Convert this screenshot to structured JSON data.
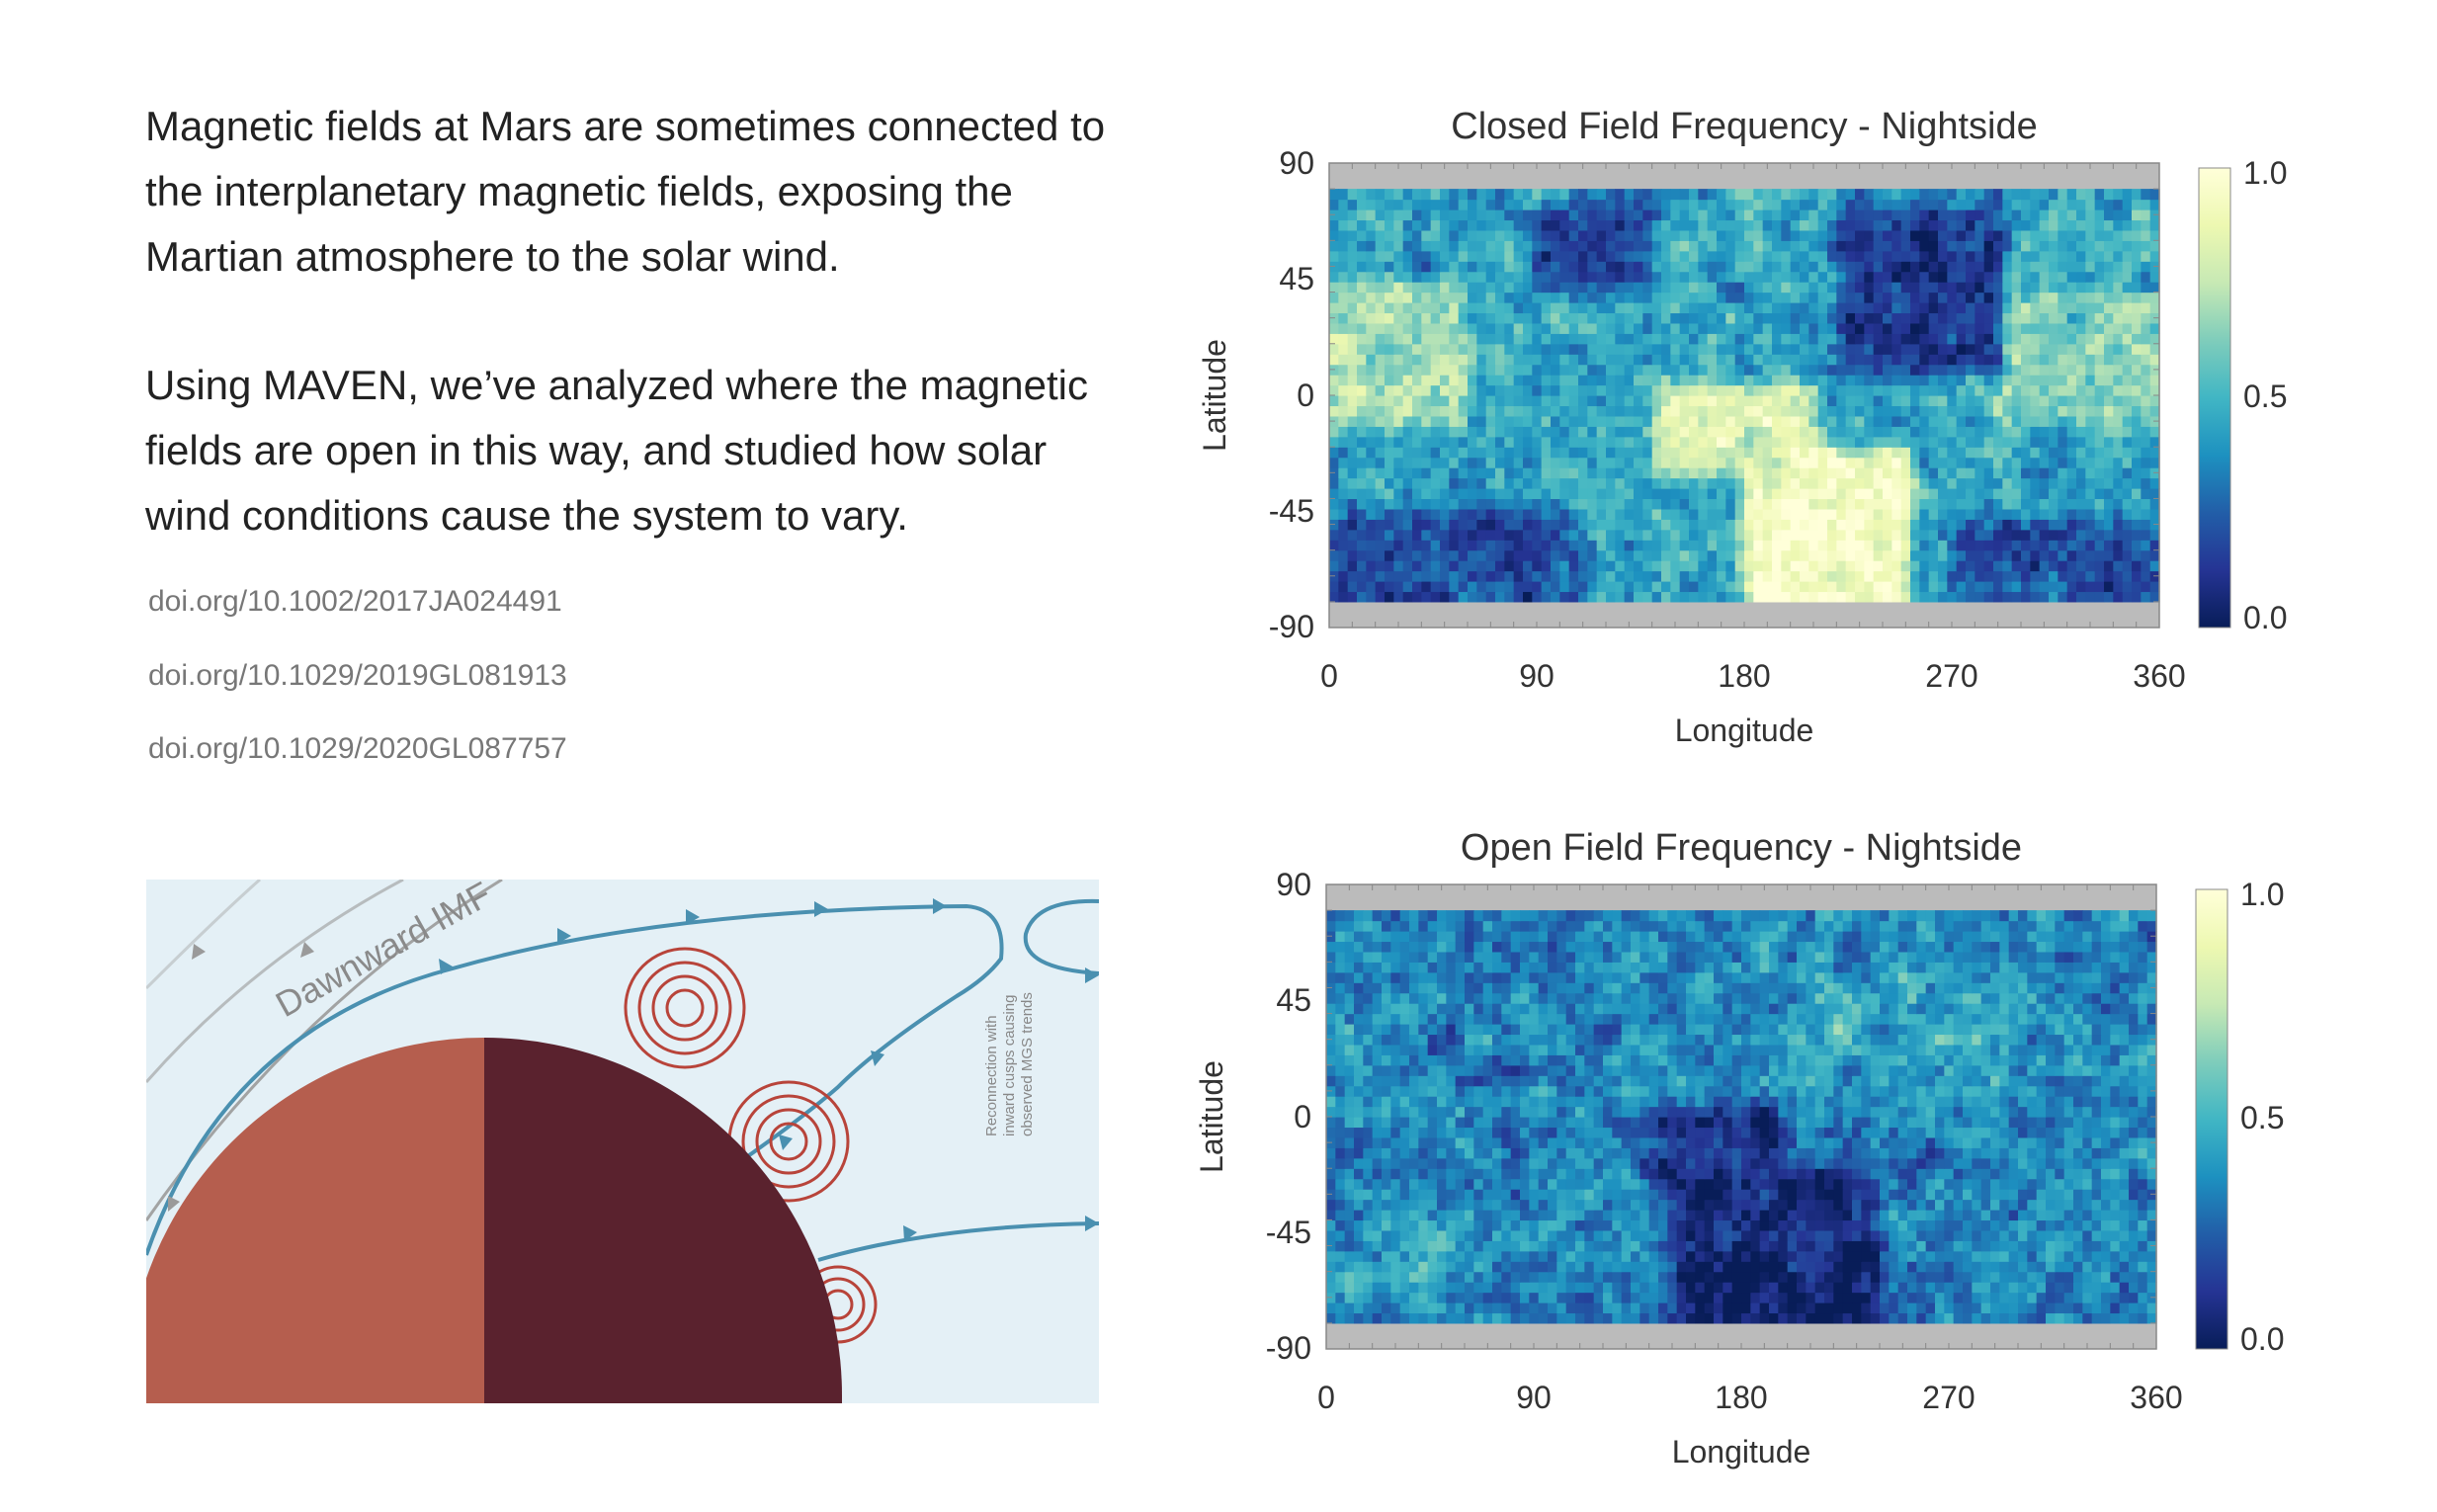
{
  "text": {
    "paragraph1": "Magnetic fields at Mars are sometimes connected to the interplanetary magnetic fields, exposing the Martian atmosphere to the solar wind.",
    "paragraph2": "Using MAVEN, we’ve analyzed where the magnetic fields are open in this way, and studied how solar wind conditions cause the system to vary.",
    "references": [
      "doi.org/10.1002/2017JA024491",
      "doi.org/10.1029/2019GL081913",
      "doi.org/10.1029/2020GL087757"
    ]
  },
  "diagram": {
    "imf_label": "Dawnward IMF",
    "annotation_lines": [
      "Reconnection with",
      "inward cusps causing",
      "observed MGS trends"
    ],
    "colors": {
      "background": "#e4f0f6",
      "field_line": "#4a90b0",
      "dayside": "#b55e4e",
      "nightside": "#5a222e",
      "cusp": "#b8443a",
      "imf_grey": "#9a9a9a"
    }
  },
  "colormap": "YlGnBu",
  "chart_data": [
    {
      "type": "heatmap",
      "title": "Closed Field Frequency - Nightside",
      "xlabel": "Longitude",
      "ylabel": "Latitude",
      "xlim": [
        0,
        360
      ],
      "ylim": [
        -90,
        90
      ],
      "xticks": [
        "0",
        "90",
        "180",
        "270",
        "360"
      ],
      "yticks": [
        "90",
        "45",
        "0",
        "-45",
        "-90"
      ],
      "data_lat_range": [
        -80,
        80
      ],
      "no_data_color": "#bbbbbb",
      "colorbar": {
        "min": 0.0,
        "max": 1.0,
        "ticks": [
          "1.0",
          "0.5",
          "0.0"
        ]
      },
      "mean_value": 0.45,
      "regions": [
        {
          "lon": [
            180,
            250
          ],
          "lat": [
            -80,
            -20
          ],
          "value": 0.95
        },
        {
          "lon": [
            140,
            210
          ],
          "lat": [
            -30,
            5
          ],
          "value": 0.85
        },
        {
          "lon": [
            0,
            60
          ],
          "lat": [
            -10,
            45
          ],
          "value": 0.7
        },
        {
          "lon": [
            290,
            360
          ],
          "lat": [
            -10,
            40
          ],
          "value": 0.65
        },
        {
          "lon": [
            90,
            140
          ],
          "lat": [
            40,
            75
          ],
          "value": 0.15
        },
        {
          "lon": [
            220,
            290
          ],
          "lat": [
            10,
            75
          ],
          "value": 0.15
        },
        {
          "lon": [
            0,
            110
          ],
          "lat": [
            -80,
            -45
          ],
          "value": 0.2
        },
        {
          "lon": [
            270,
            360
          ],
          "lat": [
            -80,
            -50
          ],
          "value": 0.2
        }
      ]
    },
    {
      "type": "heatmap",
      "title": "Open Field Frequency - Nightside",
      "xlabel": "Longitude",
      "ylabel": "Latitude",
      "xlim": [
        0,
        360
      ],
      "ylim": [
        -90,
        90
      ],
      "xticks": [
        "0",
        "90",
        "180",
        "270",
        "360"
      ],
      "yticks": [
        "90",
        "45",
        "0",
        "-45",
        "-90"
      ],
      "data_lat_range": [
        -80,
        80
      ],
      "no_data_color": "#bbbbbb",
      "colorbar": {
        "min": 0.0,
        "max": 1.0,
        "ticks": [
          "1.0",
          "0.5",
          "0.0"
        ]
      },
      "mean_value": 0.35,
      "regions": [
        {
          "lon": [
            150,
            240
          ],
          "lat": [
            -80,
            -20
          ],
          "value": 0.05
        },
        {
          "lon": [
            140,
            200
          ],
          "lat": [
            -20,
            5
          ],
          "value": 0.1
        },
        {
          "lon": [
            200,
            300
          ],
          "lat": [
            0,
            60
          ],
          "value": 0.45
        },
        {
          "lon": [
            0,
            60
          ],
          "lat": [
            -70,
            -40
          ],
          "value": 0.45
        }
      ]
    }
  ]
}
